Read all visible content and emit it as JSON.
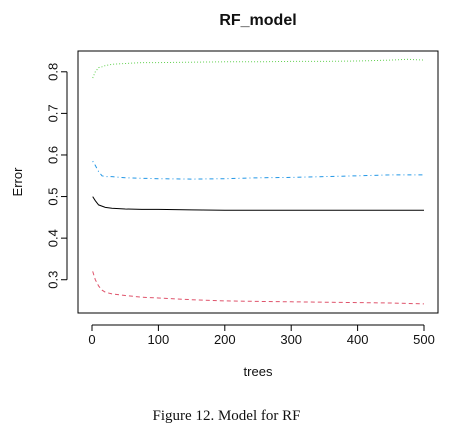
{
  "chart_data": {
    "type": "line",
    "title": "RF_model",
    "xlabel": "trees",
    "ylabel": "Error",
    "xlim": [
      0,
      500
    ],
    "ylim": [
      0.22,
      0.85
    ],
    "x_ticks": [
      "0",
      "100",
      "200",
      "300",
      "400",
      "500"
    ],
    "y_ticks": [
      "0.3",
      "0.4",
      "0.5",
      "0.6",
      "0.7",
      "0.8"
    ],
    "grid": false,
    "legend": "none",
    "series": [
      {
        "color": "#000000",
        "style": "solid",
        "x": [
          1,
          5,
          10,
          20,
          30,
          50,
          75,
          100,
          150,
          200,
          250,
          300,
          350,
          400,
          450,
          500
        ],
        "values": [
          0.5,
          0.49,
          0.48,
          0.474,
          0.472,
          0.47,
          0.469,
          0.469,
          0.468,
          0.467,
          0.467,
          0.467,
          0.467,
          0.467,
          0.467,
          0.467
        ]
      },
      {
        "color": "#df536b",
        "style": "dashed",
        "x": [
          1,
          5,
          10,
          15,
          20,
          30,
          50,
          75,
          100,
          150,
          200,
          250,
          300,
          350,
          400,
          450,
          500
        ],
        "values": [
          0.32,
          0.3,
          0.285,
          0.275,
          0.27,
          0.266,
          0.262,
          0.258,
          0.256,
          0.252,
          0.249,
          0.248,
          0.247,
          0.246,
          0.245,
          0.244,
          0.242
        ]
      },
      {
        "color": "#61d04f",
        "style": "dotted",
        "x": [
          1,
          5,
          10,
          15,
          20,
          30,
          50,
          75,
          100,
          150,
          200,
          250,
          300,
          350,
          400,
          450,
          475,
          500
        ],
        "values": [
          0.785,
          0.8,
          0.81,
          0.812,
          0.815,
          0.818,
          0.82,
          0.822,
          0.822,
          0.823,
          0.824,
          0.824,
          0.825,
          0.825,
          0.826,
          0.828,
          0.83,
          0.828
        ]
      },
      {
        "color": "#2297e6",
        "style": "dotdash",
        "x": [
          1,
          5,
          10,
          15,
          20,
          30,
          50,
          75,
          100,
          150,
          200,
          250,
          300,
          350,
          400,
          450,
          500
        ],
        "values": [
          0.585,
          0.575,
          0.56,
          0.55,
          0.548,
          0.548,
          0.545,
          0.544,
          0.543,
          0.542,
          0.543,
          0.545,
          0.546,
          0.548,
          0.55,
          0.552,
          0.552
        ]
      }
    ]
  },
  "caption": "Figure 12. Model for RF"
}
